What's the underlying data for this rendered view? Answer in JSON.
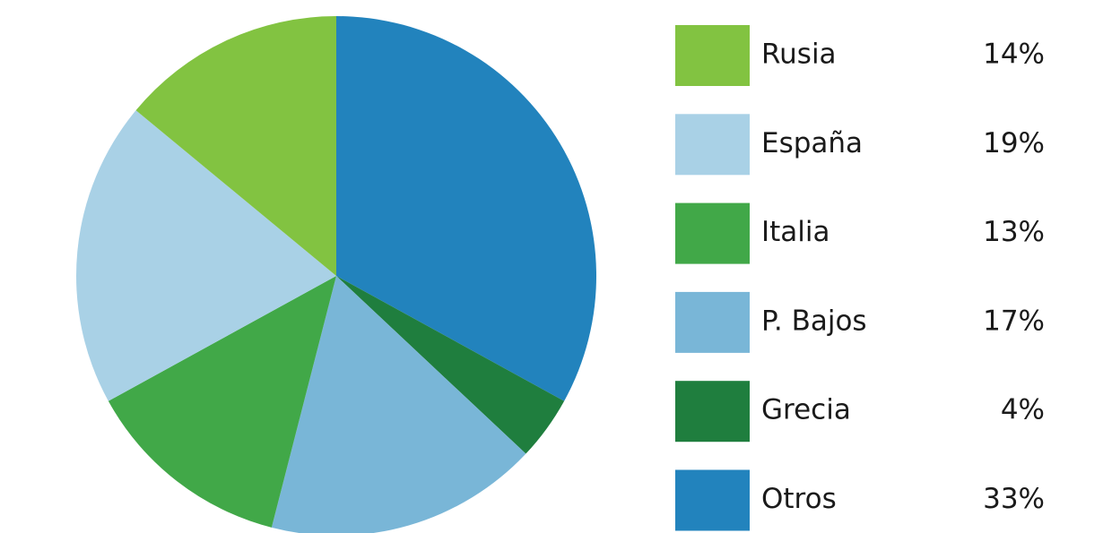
{
  "chart_data": {
    "type": "pie",
    "categories": [
      "Rusia",
      "España",
      "Italia",
      "P. Bajos",
      "Grecia",
      "Otros"
    ],
    "values": [
      14,
      19,
      13,
      17,
      4,
      33
    ],
    "value_labels": [
      "14%",
      "19%",
      "13%",
      "17%",
      "4%",
      "33%"
    ],
    "colors": [
      "#82c341",
      "#a9d1e6",
      "#41a848",
      "#79b6d7",
      "#1f7e3e",
      "#2283bd"
    ],
    "legend": "right"
  }
}
